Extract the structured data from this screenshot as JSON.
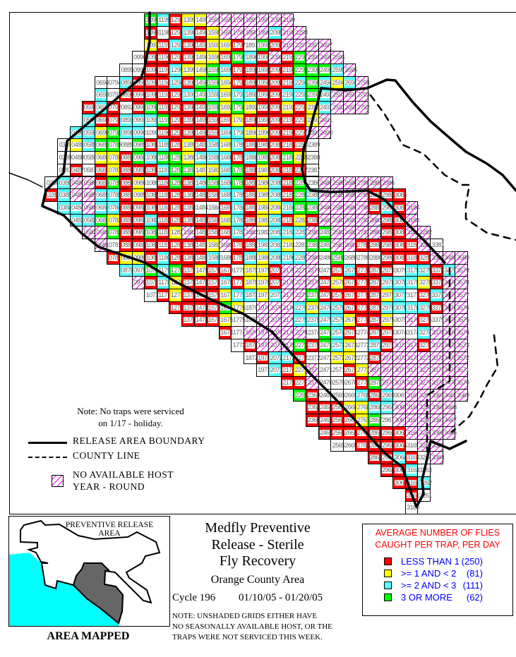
{
  "colors": {
    "less_than_1": "#ff0000",
    "one_to_two": "#ffff00",
    "two_to_three": "#55ffff",
    "three_or_more": "#00ff00",
    "no_host_hatch": "#ff00ff"
  },
  "status_codes": {
    "R": "less_than_1",
    "Y": "one_to_two",
    "C": "two_to_three",
    "G": "three_or_more",
    "H": "no_available_host",
    "W": "unshaded"
  },
  "grid": {
    "rows": [
      {
        "row": 99,
        "start_col": 10,
        "statuses": "GCRYYHHHHHHH"
      },
      {
        "row": 98,
        "start_col": 10,
        "statuses": "RWRCRYHHHHCHH"
      },
      {
        "row": 97,
        "start_col": 10,
        "statuses": "YRCRRYYRWGRHHHH"
      },
      {
        "row": 96,
        "start_col": 9,
        "statuses": "WRRRRYYRGCRHRGHHH"
      },
      {
        "row": 95,
        "start_col": 8,
        "statuses": "WWRRCYYGCRRRRRGGGCH"
      },
      {
        "row": 94,
        "start_col": 6,
        "statuses": "WWCRRRCRGGYRRRRRCGCYCH"
      },
      {
        "row": 93,
        "start_col": 6,
        "statuses": "CWRRRRRCGCYCCRRCCGCHHH"
      },
      {
        "row": 92,
        "start_col": 5,
        "statuses": "RCRWRGRRRRGYGYRRYRYCHHH"
      },
      {
        "row": 91,
        "start_col": 5,
        "statuses": "CRRCCCGRRRRRYRRRRRYH"
      },
      {
        "row": 90,
        "start_col": 4,
        "statuses": "CCYGCCWRRRRRCCYYRRRHH"
      },
      {
        "row": 89,
        "start_col": 3,
        "statuses": "WYCGGWGRCRYRCYCRRRRRW"
      },
      {
        "row": 88,
        "start_col": 3,
        "statuses": "WWWYYRGCGGYCCCRCGRGYW"
      },
      {
        "row": 87,
        "start_col": 3,
        "statuses": "WRWRYRRRCGGYYCGRYRRRW"
      },
      {
        "row": 86,
        "start_col": 2,
        "statuses": "WCHHRGRYWRGRCGCGRYCRGWHHHHHH"
      },
      {
        "row": 85,
        "start_col": 2,
        "statuses": "RCHHCCRYRRRRRRCCRYCRGCHHHHRRR"
      },
      {
        "row": 84,
        "start_col": 3,
        "statuses": "CCHCCRRRRRRWWRCRYYCGGHHHHRCRH"
      },
      {
        "row": 83,
        "start_col": 4,
        "statuses": "CCGYRRCRRRRRYCRYCRYRHHHHHRRH"
      },
      {
        "row": 82,
        "start_col": 5,
        "statuses": "HHGRRGRYHRRRCHWCCCHGHHHHRRHH"
      },
      {
        "row": 81,
        "start_col": 6,
        "statuses": "HWRRRRRRRYHRRCCYWGGHHRRRRRHW"
      },
      {
        "row": 80,
        "start_col": 7,
        "statuses": "RYYRCRRRCWRCYCCCHWGWWWRRRRHHH"
      },
      {
        "row": 79,
        "start_col": 8,
        "statuses": "CCGCGRYRRWYYRHHHWRCRRRWCCRCH"
      },
      {
        "row": 78,
        "start_col": 9,
        "statuses": "HRCYRRRCRYYRHHHRYRRRCCCYRHH"
      },
      {
        "row": 77,
        "start_col": 10,
        "statuses": "WRYRRRYCCYCHHGRRRRRYCWRCHH"
      },
      {
        "row": 76,
        "start_col": 12,
        "statuses": "RRRRGYWHHHCYCCRRRCCCCRHH"
      },
      {
        "row": 75,
        "start_col": 13,
        "statuses": "RRRYWWHHHCCCCYRRYWHRWHH"
      },
      {
        "row": 74,
        "start_col": 16,
        "statuses": "RWHHHHHWGCRWRRWWCHHH"
      },
      {
        "row": 73,
        "start_col": 17,
        "statuses": "WRHHHGRGCYWCRHHRHHH"
      },
      {
        "row": 72,
        "start_col": 18,
        "statuses": "WRCCRWWYYWRHHHHHHH"
      },
      {
        "row": 71,
        "start_col": 19,
        "statuses": "WCRYHWWRYHHHHHHHH"
      },
      {
        "row": 70,
        "start_col": 21,
        "statuses": "RRHWWWRGHHHHHHH"
      },
      {
        "row": 69,
        "start_col": 22,
        "statuses": "GRWWWCRCWHHHHH"
      },
      {
        "row": 68,
        "start_col": 23,
        "statuses": "RRRYYCCHHHHH"
      },
      {
        "row": 67,
        "start_col": 23,
        "statuses": "RRRRYGWHHHHH"
      },
      {
        "row": 66,
        "start_col": 24,
        "statuses": "RRRRRRRHHHH"
      },
      {
        "row": 65,
        "start_col": 25,
        "statuses": "WWRRRRWHH"
      },
      {
        "row": 64,
        "start_col": 28,
        "statuses": "RRCRWH"
      },
      {
        "row": 63,
        "start_col": 29,
        "statuses": "RRCW"
      },
      {
        "row": 62,
        "start_col": 30,
        "statuses": "RRC"
      },
      {
        "row": 61,
        "start_col": 31,
        "statuses": "RW"
      },
      {
        "row": 60,
        "start_col": 31,
        "statuses": "W"
      }
    ]
  },
  "note": {
    "line1": "Note: No traps were serviced",
    "line2": "on 1/17 - holiday."
  },
  "map_legend": {
    "release_boundary": "RELEASE AREA BOUNDARY",
    "county_line": "COUNTY LINE",
    "no_host_line1": "NO AVAILABLE HOST",
    "no_host_line2": "YEAR - ROUND"
  },
  "inset": {
    "title": "PREVENTIVE RELEASE AREA",
    "caption": "AREA MAPPED",
    "land_color": "#ffffff",
    "mapped_color": "#666666",
    "ocean_color": "#00ffff"
  },
  "title": {
    "line1": "Medfly Preventive",
    "line2": "Release - Sterile",
    "line3": "Fly Recovery",
    "area": "Orange County Area",
    "cycle": "Cycle 196",
    "dates": "01/10/05 - 01/20/05"
  },
  "footnote": {
    "line1": "NOTE: UNSHADED GRIDS EITHER HAVE",
    "line2": "NO SEASONALLY AVAILABLE HOST, OR THE",
    "line3": "TRAPS WERE NOT SERVICED THIS WEEK."
  },
  "catch_legend": {
    "title_line1": "AVERAGE NUMBER OF FLIES",
    "title_line2": "CAUGHT PER TRAP, PER DAY",
    "items": [
      {
        "label": "LESS THAN 1",
        "count": "(250)",
        "color": "#ff0000"
      },
      {
        "label": ">= 1 AND < 2",
        "count": "(81)",
        "color": "#ffff00"
      },
      {
        "label": ">= 2 AND < 3",
        "count": "(111)",
        "color": "#55ffff"
      },
      {
        "label": "3 OR MORE",
        "count": "(62)",
        "color": "#00ff00"
      }
    ]
  }
}
